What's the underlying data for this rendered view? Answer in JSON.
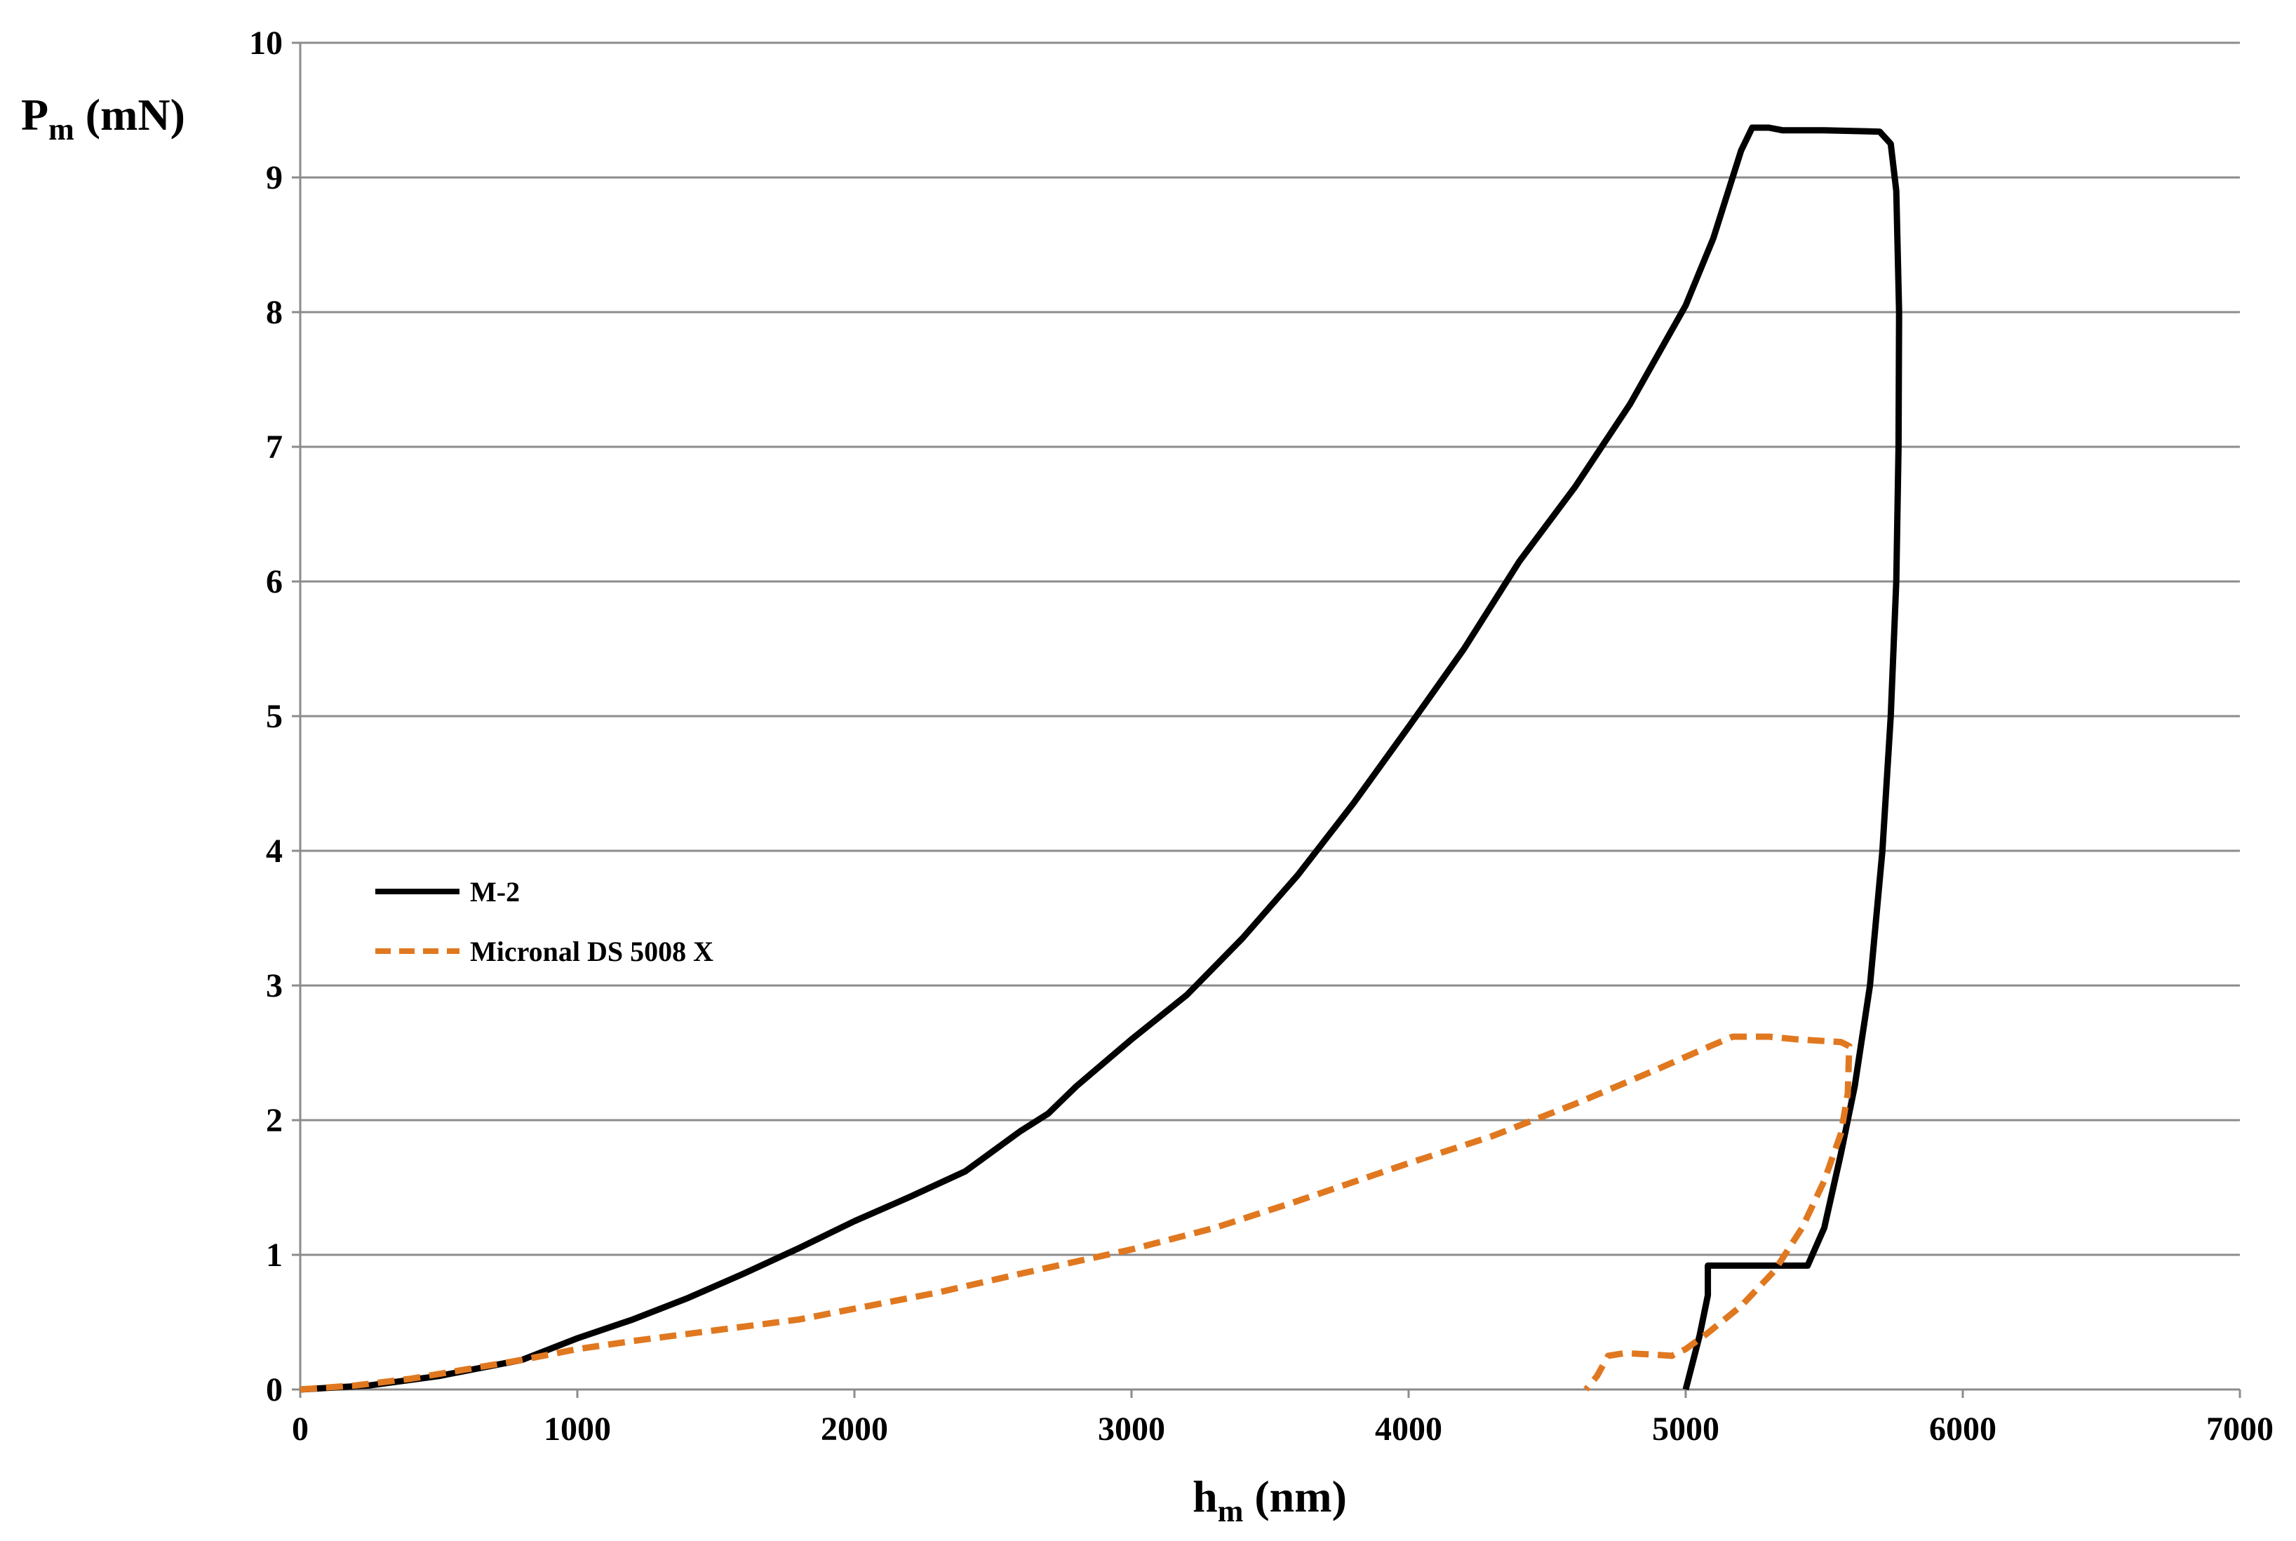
{
  "chart_data": {
    "type": "line",
    "xlabel": {
      "main": "h",
      "sub": "m",
      "unit": " (nm)"
    },
    "ylabel": {
      "main": "P",
      "sub": "m",
      "unit": " (mN)"
    },
    "xlim": [
      0,
      7000
    ],
    "ylim": [
      0,
      10
    ],
    "x_ticks": [
      "0",
      "1000",
      "2000",
      "3000",
      "4000",
      "5000",
      "6000",
      "7000"
    ],
    "y_ticks": [
      "0",
      "1",
      "2",
      "3",
      "4",
      "5",
      "6",
      "7",
      "8",
      "9",
      "10"
    ],
    "grid": "horizontal",
    "legend_position": "middle-left",
    "series": [
      {
        "name": "M-2",
        "color": "#000000",
        "style": "solid",
        "points": [
          [
            0,
            0
          ],
          [
            250,
            0.03
          ],
          [
            500,
            0.1
          ],
          [
            800,
            0.22
          ],
          [
            1000,
            0.38
          ],
          [
            1200,
            0.52
          ],
          [
            1400,
            0.68
          ],
          [
            1600,
            0.86
          ],
          [
            1800,
            1.05
          ],
          [
            2000,
            1.25
          ],
          [
            2200,
            1.43
          ],
          [
            2400,
            1.62
          ],
          [
            2600,
            1.92
          ],
          [
            2700,
            2.05
          ],
          [
            2800,
            2.25
          ],
          [
            3000,
            2.6
          ],
          [
            3200,
            2.93
          ],
          [
            3400,
            3.35
          ],
          [
            3600,
            3.82
          ],
          [
            3800,
            4.35
          ],
          [
            4000,
            4.92
          ],
          [
            4200,
            5.5
          ],
          [
            4400,
            6.15
          ],
          [
            4600,
            6.7
          ],
          [
            4800,
            7.32
          ],
          [
            5000,
            8.05
          ],
          [
            5100,
            8.55
          ],
          [
            5200,
            9.2
          ],
          [
            5240,
            9.37
          ],
          [
            5300,
            9.37
          ],
          [
            5350,
            9.35
          ],
          [
            5500,
            9.35
          ],
          [
            5700,
            9.34
          ],
          [
            5740,
            9.25
          ],
          [
            5760,
            8.9
          ],
          [
            5770,
            8.0
          ],
          [
            5768,
            7.0
          ],
          [
            5760,
            6.0
          ],
          [
            5740,
            5.0
          ],
          [
            5710,
            4.0
          ],
          [
            5665,
            3.0
          ],
          [
            5610,
            2.25
          ],
          [
            5560,
            1.75
          ],
          [
            5500,
            1.2
          ],
          [
            5440,
            0.92
          ],
          [
            5370,
            0.92
          ],
          [
            5080,
            0.92
          ],
          [
            5080,
            0.7
          ],
          [
            5050,
            0.4
          ],
          [
            5000,
            0
          ]
        ]
      },
      {
        "name": "Micronal DS 5008 X",
        "color": "#e07820",
        "style": "dashed",
        "points": [
          [
            0,
            0
          ],
          [
            200,
            0.03
          ],
          [
            400,
            0.08
          ],
          [
            600,
            0.15
          ],
          [
            800,
            0.22
          ],
          [
            1000,
            0.3
          ],
          [
            1200,
            0.36
          ],
          [
            1500,
            0.44
          ],
          [
            1800,
            0.52
          ],
          [
            2000,
            0.6
          ],
          [
            2300,
            0.72
          ],
          [
            2600,
            0.86
          ],
          [
            3000,
            1.04
          ],
          [
            3300,
            1.2
          ],
          [
            3600,
            1.4
          ],
          [
            4000,
            1.68
          ],
          [
            4300,
            1.88
          ],
          [
            4600,
            2.12
          ],
          [
            4900,
            2.38
          ],
          [
            5100,
            2.56
          ],
          [
            5170,
            2.62
          ],
          [
            5300,
            2.62
          ],
          [
            5400,
            2.6
          ],
          [
            5560,
            2.58
          ],
          [
            5590,
            2.55
          ],
          [
            5585,
            2.2
          ],
          [
            5560,
            1.9
          ],
          [
            5500,
            1.55
          ],
          [
            5420,
            1.2
          ],
          [
            5320,
            0.88
          ],
          [
            5200,
            0.62
          ],
          [
            5080,
            0.42
          ],
          [
            5000,
            0.3
          ],
          [
            4950,
            0.25
          ],
          [
            4880,
            0.26
          ],
          [
            4780,
            0.27
          ],
          [
            4720,
            0.25
          ],
          [
            4680,
            0.1
          ],
          [
            4640,
            0
          ]
        ]
      }
    ]
  }
}
